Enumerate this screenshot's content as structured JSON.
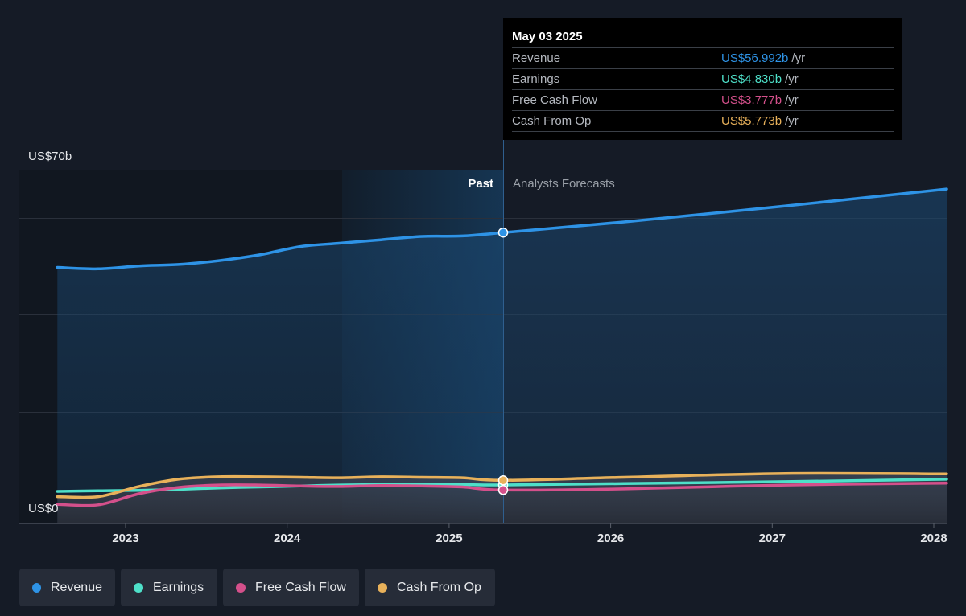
{
  "chart_data": {
    "type": "line",
    "y_axis": {
      "top_label": "US$70b",
      "bottom_label": "US$0",
      "ylim": [
        0,
        70
      ]
    },
    "x_ticks": [
      "2023",
      "2024",
      "2025",
      "2026",
      "2027",
      "2028"
    ],
    "regions": {
      "past_label": "Past",
      "forecast_label": "Analysts Forecasts",
      "divider_date": "2025-05-03"
    },
    "series": [
      {
        "name": "Revenue",
        "color": "#2e93e6",
        "points": [
          [
            "2022-07-31",
            49.8
          ],
          [
            "2022-10-31",
            49.5
          ],
          [
            "2023-01-31",
            50.1
          ],
          [
            "2023-04-30",
            50.4
          ],
          [
            "2023-07-31",
            51.2
          ],
          [
            "2023-10-31",
            52.4
          ],
          [
            "2024-01-31",
            54.1
          ],
          [
            "2024-04-30",
            54.8
          ],
          [
            "2024-07-31",
            55.5
          ],
          [
            "2024-10-31",
            56.2
          ],
          [
            "2025-01-31",
            56.3
          ],
          [
            "2025-05-03",
            56.99
          ],
          [
            "2026-01-31",
            59.2
          ],
          [
            "2027-01-31",
            62.5
          ],
          [
            "2028-01-31",
            66.0
          ]
        ]
      },
      {
        "name": "Earnings",
        "color": "#4ee0c9",
        "points": [
          [
            "2022-07-31",
            3.5
          ],
          [
            "2022-10-31",
            3.6
          ],
          [
            "2023-01-31",
            3.7
          ],
          [
            "2023-04-30",
            3.9
          ],
          [
            "2023-07-31",
            4.2
          ],
          [
            "2023-10-31",
            4.4
          ],
          [
            "2024-01-31",
            4.6
          ],
          [
            "2024-04-30",
            4.8
          ],
          [
            "2024-07-31",
            4.9
          ],
          [
            "2024-10-31",
            4.9
          ],
          [
            "2025-01-31",
            4.9
          ],
          [
            "2025-05-03",
            4.83
          ],
          [
            "2026-01-31",
            5.1
          ],
          [
            "2027-01-31",
            5.5
          ],
          [
            "2028-01-31",
            6.0
          ]
        ]
      },
      {
        "name": "Free Cash Flow",
        "color": "#d4508b",
        "points": [
          [
            "2022-07-31",
            0.8
          ],
          [
            "2022-10-31",
            0.7
          ],
          [
            "2023-01-31",
            3.0
          ],
          [
            "2023-04-30",
            4.3
          ],
          [
            "2023-07-31",
            4.8
          ],
          [
            "2023-10-31",
            4.8
          ],
          [
            "2024-01-31",
            4.6
          ],
          [
            "2024-04-30",
            4.5
          ],
          [
            "2024-07-31",
            4.7
          ],
          [
            "2024-10-31",
            4.6
          ],
          [
            "2025-01-31",
            4.4
          ],
          [
            "2025-05-03",
            3.78
          ],
          [
            "2026-01-31",
            4.0
          ],
          [
            "2027-01-31",
            4.8
          ],
          [
            "2028-01-31",
            5.2
          ]
        ]
      },
      {
        "name": "Cash From Op",
        "color": "#e8b15a",
        "points": [
          [
            "2022-07-31",
            2.4
          ],
          [
            "2022-10-31",
            2.4
          ],
          [
            "2023-01-31",
            4.5
          ],
          [
            "2023-04-30",
            6.0
          ],
          [
            "2023-07-31",
            6.5
          ],
          [
            "2023-10-31",
            6.5
          ],
          [
            "2024-01-31",
            6.4
          ],
          [
            "2024-04-30",
            6.3
          ],
          [
            "2024-07-31",
            6.5
          ],
          [
            "2024-10-31",
            6.4
          ],
          [
            "2025-01-31",
            6.3
          ],
          [
            "2025-05-03",
            5.77
          ],
          [
            "2026-01-31",
            6.4
          ],
          [
            "2027-01-31",
            7.2
          ],
          [
            "2028-01-31",
            7.1
          ]
        ]
      }
    ]
  },
  "tooltip": {
    "date": "May 03 2025",
    "rows": [
      {
        "label": "Revenue",
        "value": "US$56.992b",
        "unit": "/yr",
        "color": "#2e93e6"
      },
      {
        "label": "Earnings",
        "value": "US$4.830b",
        "unit": "/yr",
        "color": "#4ee0c9"
      },
      {
        "label": "Free Cash Flow",
        "value": "US$3.777b",
        "unit": "/yr",
        "color": "#d4508b"
      },
      {
        "label": "Cash From Op",
        "value": "US$5.773b",
        "unit": "/yr",
        "color": "#e8b15a"
      }
    ]
  },
  "legend": [
    {
      "label": "Revenue",
      "color": "#2e93e6"
    },
    {
      "label": "Earnings",
      "color": "#4ee0c9"
    },
    {
      "label": "Free Cash Flow",
      "color": "#d4508b"
    },
    {
      "label": "Cash From Op",
      "color": "#e8b15a"
    }
  ]
}
